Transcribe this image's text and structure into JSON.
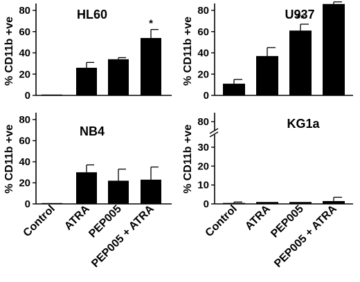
{
  "chart_data": [
    {
      "type": "bar",
      "title": "HL60",
      "ylabel": "% CD11b +ve",
      "ylim": [
        0,
        80
      ],
      "yticks": [
        0,
        20,
        40,
        60,
        80
      ],
      "categories": [
        "Control",
        "ATRA",
        "PEP005",
        "PEP005 + ATRA"
      ],
      "values": [
        0.5,
        26,
        34,
        54
      ],
      "errors": [
        0,
        5,
        1.5,
        8
      ],
      "annotations": [
        "",
        "",
        "",
        "*"
      ],
      "grid": false
    },
    {
      "type": "bar",
      "title": "U937",
      "ylabel": "% CD11b +ve",
      "ylim": [
        0,
        80
      ],
      "yticks": [
        0,
        20,
        40,
        60,
        80
      ],
      "categories": [
        "Control",
        "ATRA",
        "PEP005",
        "PEP005 + ATRA"
      ],
      "values": [
        11,
        37,
        61,
        86
      ],
      "errors": [
        4,
        8,
        6,
        2
      ],
      "annotations": [
        "",
        "",
        "**",
        "***"
      ],
      "grid": false
    },
    {
      "type": "bar",
      "title": "NB4",
      "ylabel": "% CD11b +ve",
      "ylim": [
        0,
        80
      ],
      "yticks": [
        0,
        20,
        40,
        60,
        80
      ],
      "categories": [
        "Control",
        "ATRA",
        "PEP005",
        "PEP005 + ATRA"
      ],
      "values": [
        0.5,
        30,
        22,
        23
      ],
      "errors": [
        0,
        7,
        11,
        12
      ],
      "annotations": [
        "",
        "",
        "",
        ""
      ],
      "grid": false
    },
    {
      "type": "bar",
      "title": "KG1a",
      "ylabel": "% CD11b +ve",
      "ylim": [
        0,
        30
      ],
      "yticks": [
        0,
        10,
        20,
        30
      ],
      "axis_break_label": "80",
      "categories": [
        "Control",
        "ATRA",
        "PEP005",
        "PEP005 + ATRA"
      ],
      "values": [
        0.5,
        1,
        1,
        1.5
      ],
      "errors": [
        0.5,
        0,
        0,
        2
      ],
      "annotations": [
        "",
        "",
        "",
        ""
      ],
      "grid": false
    }
  ]
}
